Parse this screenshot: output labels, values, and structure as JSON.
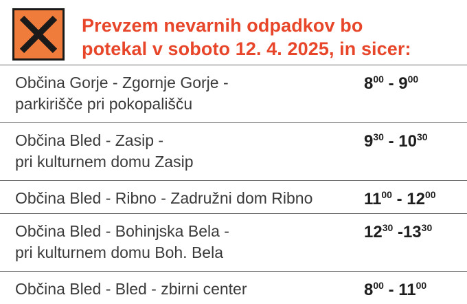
{
  "header": {
    "symbol_icon": "harmful-hazard-x-icon",
    "symbol_color": "#f07c3c",
    "title_color": "#e8462a",
    "title_lines": [
      "Prevzem nevarnih odpadkov bo",
      "potekal v soboto 12. 4. 2025, in sicer:"
    ]
  },
  "schedule": [
    {
      "location_lines": [
        "Občina Gorje - Zgornje Gorje -",
        "parkirišče pri pokopališču"
      ],
      "start_h": "8",
      "start_m": "00",
      "sep": " - ",
      "end_h": "9",
      "end_m": "00"
    },
    {
      "location_lines": [
        "Občina Bled - Zasip -",
        "pri kulturnem domu Zasip"
      ],
      "start_h": "9",
      "start_m": "30",
      "sep": " - ",
      "end_h": "10",
      "end_m": "30"
    },
    {
      "location_lines": [
        "Občina Bled - Ribno - Zadružni dom Ribno"
      ],
      "start_h": "11",
      "start_m": "00",
      "sep": " - ",
      "end_h": "12",
      "end_m": "00"
    },
    {
      "location_lines": [
        "Občina Bled - Bohinjska Bela -",
        "pri kulturnem domu Boh. Bela"
      ],
      "start_h": "12",
      "start_m": "30",
      "sep": " -",
      "end_h": "13",
      "end_m": "30"
    },
    {
      "location_lines": [
        "Občina Bled - Bled - zbirni center"
      ],
      "start_h": "8",
      "start_m": "00",
      "sep": " - ",
      "end_h": "11",
      "end_m": "00"
    }
  ]
}
